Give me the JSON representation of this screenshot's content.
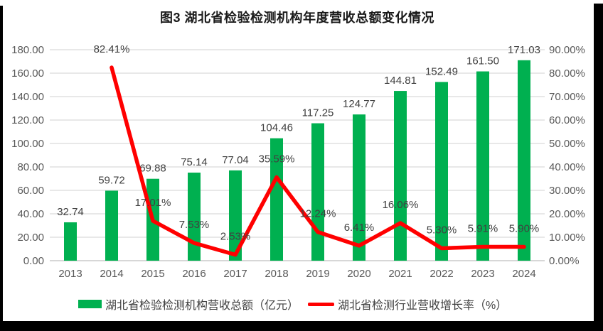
{
  "figure": {
    "title": "图3 湖北省检验检测机构年度营收总额变化情况"
  },
  "chart_data": {
    "type": "bar",
    "subtype": "bar+line combo, dual axis",
    "title": "图3 湖北省检验检测机构年度营收总额变化情况",
    "categories": [
      "2013",
      "2014",
      "2015",
      "2016",
      "2017",
      "2018",
      "2019",
      "2020",
      "2021",
      "2022",
      "2023",
      "2024"
    ],
    "series": [
      {
        "name": "湖北省检验检测机构营收总额（亿元）",
        "type": "bar",
        "axis": "left",
        "color": "#00B050",
        "values": [
          32.74,
          59.72,
          69.88,
          75.14,
          77.04,
          104.46,
          117.25,
          124.77,
          144.81,
          152.49,
          161.5,
          171.03
        ],
        "labels": [
          "32.74",
          "59.72",
          "69.88",
          "75.14",
          "77.04",
          "104.46",
          "117.25",
          "124.77",
          "144.81",
          "152.49",
          "161.50",
          "171.03"
        ]
      },
      {
        "name": "湖北省检测行业营收增长率（%）",
        "type": "line",
        "axis": "right",
        "color": "#FF0000",
        "values": [
          null,
          82.41,
          17.01,
          7.53,
          2.53,
          35.59,
          12.24,
          6.41,
          16.06,
          5.3,
          5.91,
          5.9
        ],
        "labels": [
          "",
          "82.41%",
          "17.01%",
          "7.53%",
          "2.53%",
          "35.59%",
          "12.24%",
          "6.41%",
          "16.06%",
          "5.30%",
          "5.91%",
          "5.90%"
        ]
      }
    ],
    "left_axis": {
      "min": 0,
      "max": 180,
      "ticks": [
        "0.00",
        "20.00",
        "40.00",
        "60.00",
        "80.00",
        "100.00",
        "120.00",
        "140.00",
        "160.00",
        "180.00"
      ]
    },
    "right_axis": {
      "min": 0,
      "max": 90,
      "ticks": [
        "0.00%",
        "10.00%",
        "20.00%",
        "30.00%",
        "40.00%",
        "50.00%",
        "60.00%",
        "70.00%",
        "80.00%",
        "90.00%"
      ]
    },
    "grid": true,
    "legend_position": "bottom",
    "colors": {
      "grid": "#D9D9D9",
      "zero_line": "#BFBFBF",
      "axis_text": "#595959",
      "data_label": "#404040"
    }
  }
}
